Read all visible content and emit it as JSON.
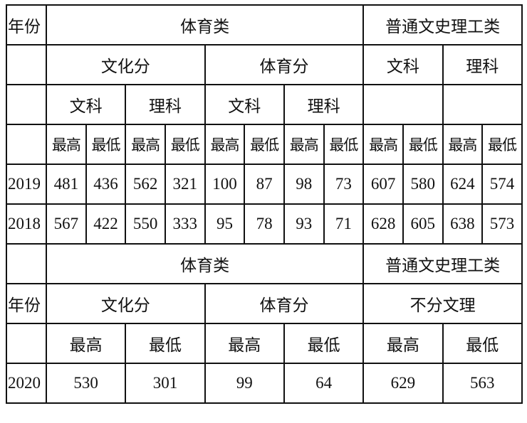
{
  "top_table": {
    "year_label": "年份",
    "sports": "体育类",
    "general": "普通文史理工类",
    "culture": "文化分",
    "sports_score": "体育分",
    "liberal": "文科",
    "science": "理科",
    "max": "最高",
    "min": "最低",
    "rows": [
      {
        "year": "2019",
        "values": [
          "481",
          "436",
          "562",
          "321",
          "100",
          "87",
          "98",
          "73",
          "607",
          "580",
          "624",
          "574"
        ]
      },
      {
        "year": "2018",
        "values": [
          "567",
          "422",
          "550",
          "333",
          "95",
          "78",
          "93",
          "71",
          "628",
          "605",
          "638",
          "573"
        ]
      }
    ]
  },
  "bottom_table": {
    "year_label": "年份",
    "sports": "体育类",
    "general": "普通文史理工类",
    "culture": "文化分",
    "sports_score": "体育分",
    "no_split": "不分文理",
    "max": "最高",
    "min": "最低",
    "rows": [
      {
        "year": "2020",
        "values": [
          "530",
          "301",
          "99",
          "64",
          "629",
          "563"
        ]
      }
    ]
  }
}
